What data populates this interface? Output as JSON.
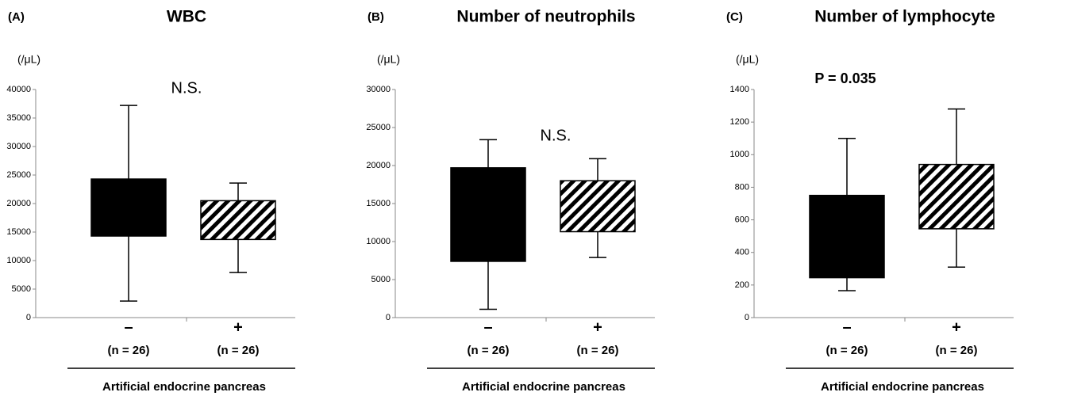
{
  "chart_data": [
    {
      "type": "box",
      "panel_label": "(A)",
      "title": "WBC",
      "y_unit_label": "(/μL)",
      "annotation": "N.S.",
      "categories": [
        "–",
        "+"
      ],
      "n_labels": [
        "(n = 26)",
        "(n = 26)"
      ],
      "x_title": "Artificial endocrine pancreas",
      "whisker_low": [
        2900,
        7900
      ],
      "q1": [
        14300,
        13700
      ],
      "q3": [
        24300,
        20500
      ],
      "whisker_high": [
        37200,
        23600
      ],
      "fills": [
        "#000000",
        "hatch"
      ],
      "ylim": [
        0,
        40000
      ],
      "yticks": [
        0,
        5000,
        10000,
        15000,
        20000,
        25000,
        30000,
        35000,
        40000
      ]
    },
    {
      "type": "box",
      "panel_label": "(B)",
      "title": "Number of neutrophils",
      "y_unit_label": "(/μL)",
      "annotation": "N.S.",
      "categories": [
        "–",
        "+"
      ],
      "n_labels": [
        "(n = 26)",
        "(n = 26)"
      ],
      "x_title": "Artificial endocrine pancreas",
      "whisker_low": [
        1100,
        7900
      ],
      "q1": [
        7400,
        11300
      ],
      "q3": [
        19700,
        18000
      ],
      "whisker_high": [
        23400,
        20900
      ],
      "fills": [
        "#000000",
        "hatch"
      ],
      "ylim": [
        0,
        30000
      ],
      "yticks": [
        0,
        5000,
        10000,
        15000,
        20000,
        25000,
        30000
      ]
    },
    {
      "type": "box",
      "panel_label": "(C)",
      "title": "Number of lymphocyte",
      "y_unit_label": "(/μL)",
      "annotation": "P = 0.035",
      "categories": [
        "–",
        "+"
      ],
      "n_labels": [
        "(n = 26)",
        "(n = 26)"
      ],
      "x_title": "Artificial endocrine pancreas",
      "whisker_low": [
        165,
        310
      ],
      "q1": [
        245,
        545
      ],
      "q3": [
        750,
        940
      ],
      "whisker_high": [
        1100,
        1280
      ],
      "fills": [
        "#000000",
        "hatch"
      ],
      "ylim": [
        0,
        1400
      ],
      "yticks": [
        0,
        200,
        400,
        600,
        800,
        1000,
        1200,
        1400
      ]
    }
  ]
}
